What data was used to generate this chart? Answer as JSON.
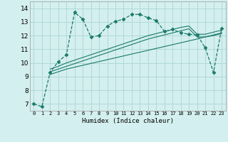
{
  "xlabel": "Humidex (Indice chaleur)",
  "bg_color": "#d4efef",
  "line_color": "#1a7a6a",
  "grid_color": "#b0d8d8",
  "xlim": [
    -0.5,
    23.5
  ],
  "ylim": [
    6.5,
    14.5
  ],
  "yticks": [
    7,
    8,
    9,
    10,
    11,
    12,
    13,
    14
  ],
  "xticks": [
    0,
    1,
    2,
    3,
    4,
    5,
    6,
    7,
    8,
    9,
    10,
    11,
    12,
    13,
    14,
    15,
    16,
    17,
    18,
    19,
    20,
    21,
    22,
    23
  ],
  "series1_x": [
    0,
    1,
    2,
    3,
    4,
    5,
    6,
    7,
    8,
    9,
    10,
    11,
    12,
    13,
    14,
    15,
    16,
    17,
    18,
    19,
    20,
    21,
    22,
    23
  ],
  "series1_y": [
    7.0,
    6.8,
    9.3,
    10.1,
    10.6,
    13.7,
    13.2,
    11.9,
    12.0,
    12.7,
    13.05,
    13.2,
    13.55,
    13.55,
    13.3,
    13.1,
    12.3,
    12.45,
    12.2,
    12.1,
    12.05,
    11.1,
    9.3,
    12.55
  ],
  "series2_x": [
    2,
    3,
    4,
    5,
    6,
    7,
    8,
    9,
    10,
    11,
    12,
    13,
    14,
    15,
    16,
    17,
    18,
    19,
    20,
    21,
    22,
    23
  ],
  "series2_y": [
    9.55,
    9.75,
    10.0,
    10.2,
    10.4,
    10.6,
    10.8,
    11.0,
    11.2,
    11.4,
    11.6,
    11.8,
    12.0,
    12.15,
    12.3,
    12.45,
    12.6,
    12.7,
    12.1,
    12.1,
    12.25,
    12.4
  ],
  "series3_x": [
    2,
    3,
    4,
    5,
    6,
    7,
    8,
    9,
    10,
    11,
    12,
    13,
    14,
    15,
    16,
    17,
    18,
    19,
    20,
    21,
    22,
    23
  ],
  "series3_y": [
    9.35,
    9.55,
    9.75,
    9.95,
    10.15,
    10.35,
    10.55,
    10.75,
    10.95,
    11.15,
    11.35,
    11.55,
    11.75,
    11.9,
    12.05,
    12.2,
    12.35,
    12.5,
    11.9,
    11.9,
    12.05,
    12.2
  ],
  "series4_x": [
    2,
    3,
    4,
    20,
    21,
    22,
    23
  ],
  "series4_y": [
    9.15,
    9.35,
    9.55,
    11.75,
    11.9,
    12.0,
    12.15
  ]
}
